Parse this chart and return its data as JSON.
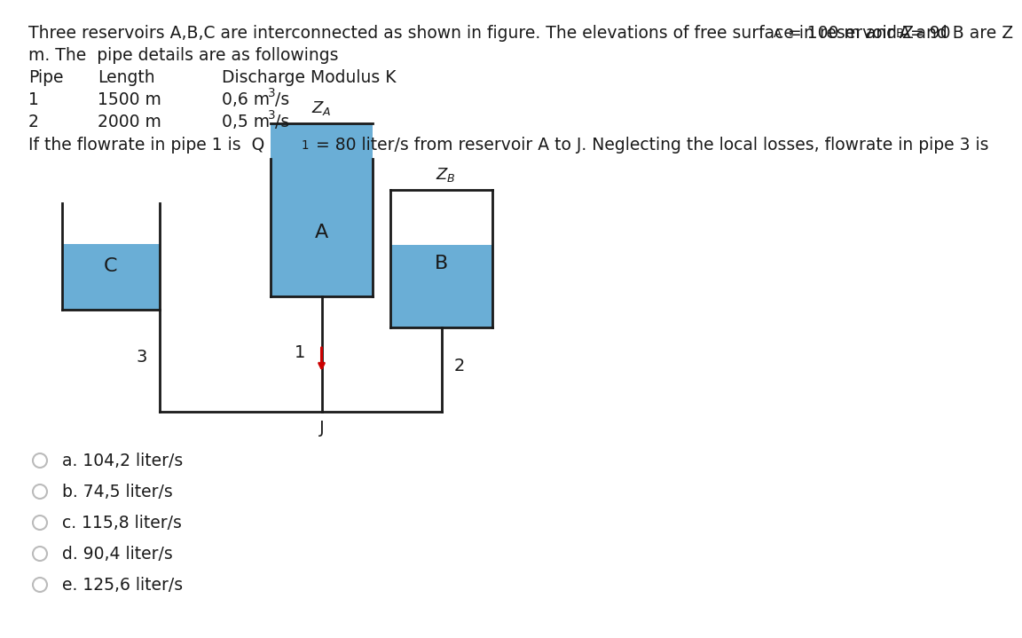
{
  "line1a": "Three reservoirs A,B,C are interconnected as shown in figure. The elevations of free surface in reservoir A and B are Z",
  "line1b": "A",
  "line1c": " = 100 m and Z",
  "line1d": "B",
  "line1e": " = 90",
  "line2": "m. The  pipe details are as followings",
  "col1_header": "Pipe",
  "col2_header": "Length",
  "col3_header": "Discharge Modulus K",
  "row1": [
    "1",
    "1500 m",
    "0,6 m",
    "3",
    "/s"
  ],
  "row2": [
    "2",
    "2000 m",
    "0,5 m",
    "3",
    "/s"
  ],
  "q_start": "If the flowrate in pipe 1 is  Q",
  "q_sub": "1",
  "q_end": " = 80 liter/s from reservoir A to J. Neglecting the local losses, flowrate in pipe 3 is",
  "options": [
    "a. 104,2 liter/s",
    "b. 74,5 liter/s",
    "c. 115,8 liter/s",
    "d. 90,4 liter/s",
    "e. 125,6 liter/s"
  ],
  "reservoir_color": "#6aaed6",
  "border_color": "#1a1a1a",
  "bg_color": "#ffffff",
  "text_color": "#1a1a1a",
  "arrow_color": "#cc0000",
  "radio_color": "#bbbbbb"
}
